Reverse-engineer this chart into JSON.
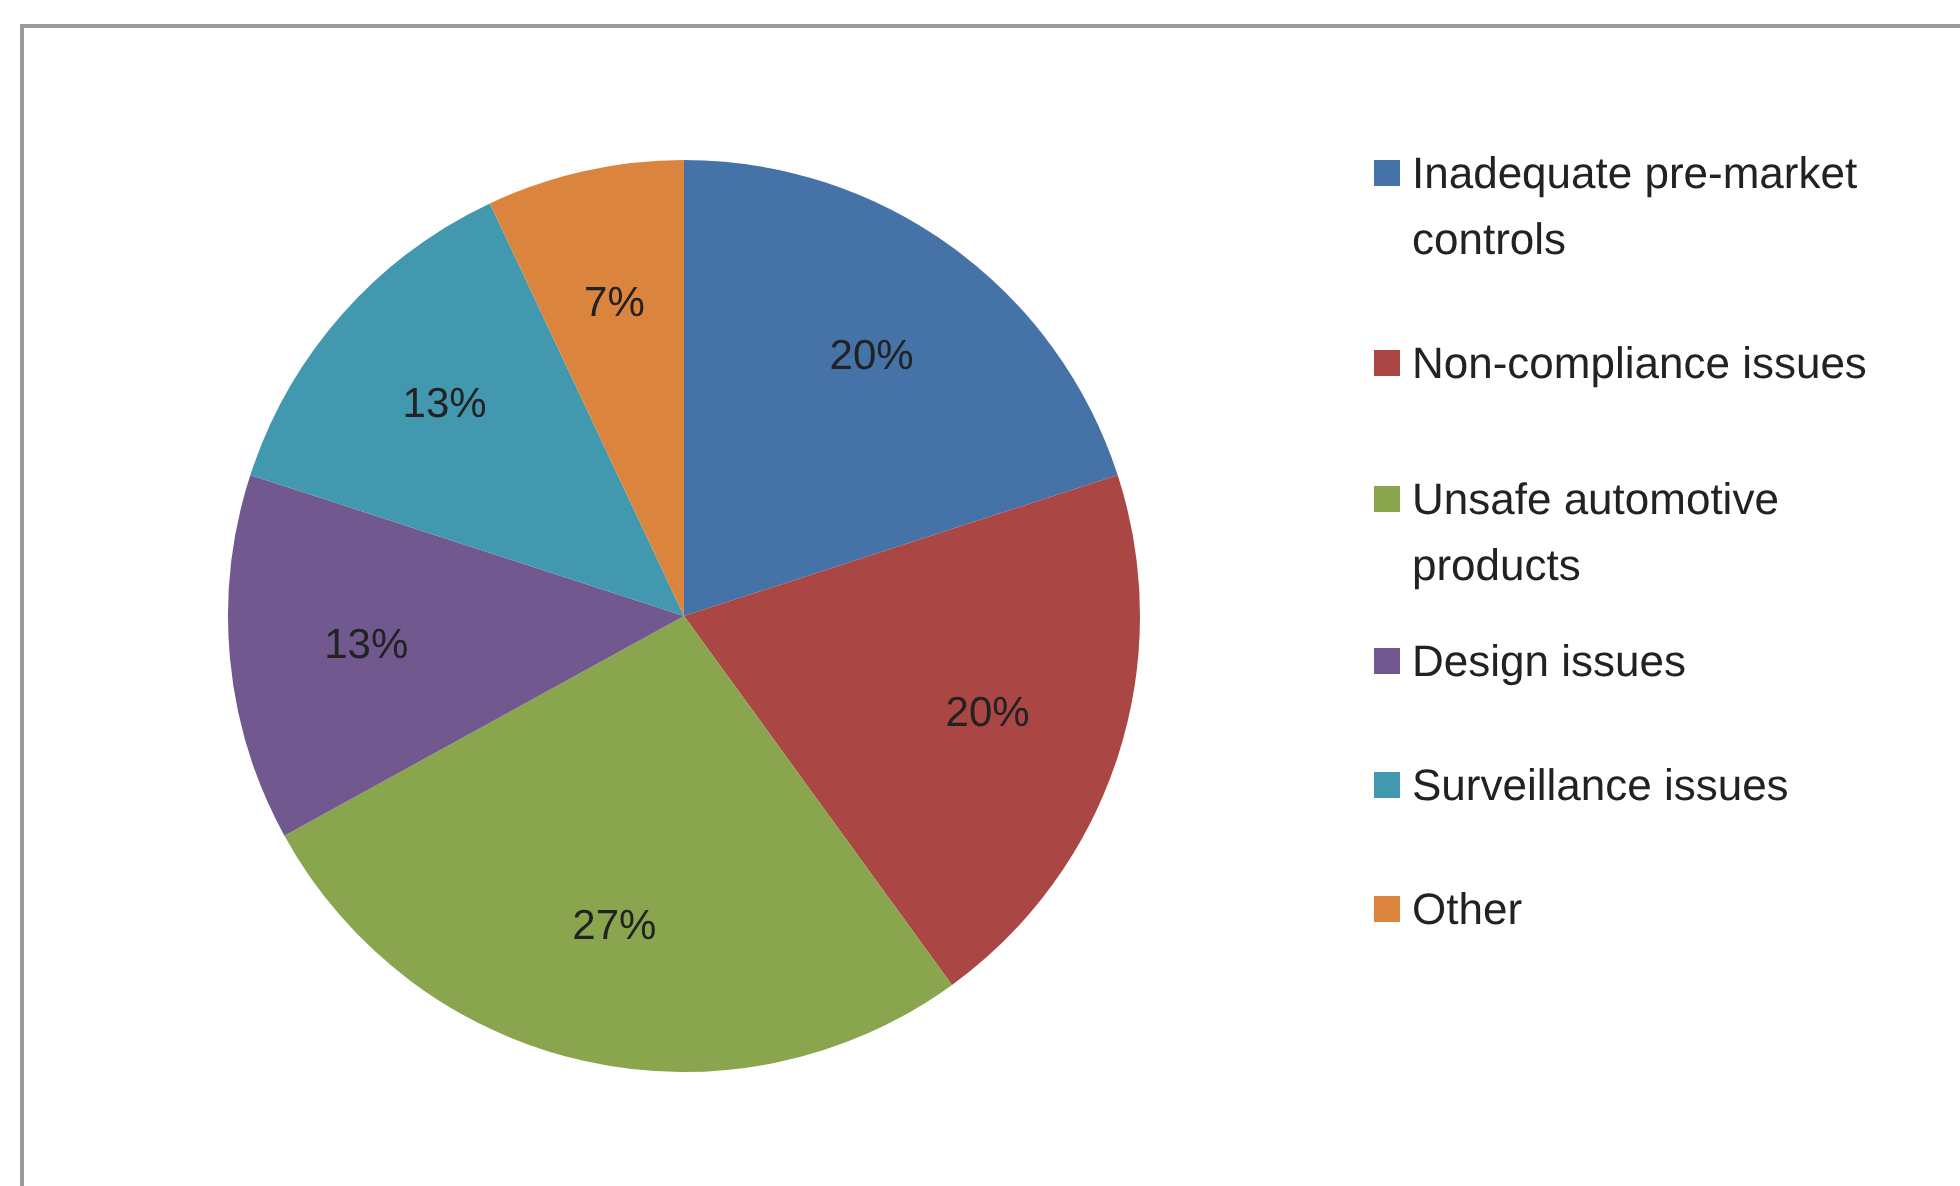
{
  "chart_data": {
    "type": "pie",
    "categories": [
      "Inadequate pre-market controls",
      "Non-compliance issues",
      "Unsafe automotive products",
      "Design issues",
      "Surveillance issues",
      "Other"
    ],
    "values": [
      20,
      20,
      27,
      13,
      13,
      7
    ],
    "colors": [
      "#4572a7",
      "#aa4643",
      "#89a54e",
      "#71588f",
      "#4198af",
      "#db843d"
    ],
    "value_labels": [
      "20%",
      "20%",
      "27%",
      "13%",
      "13%",
      "7%"
    ],
    "legend": "right"
  }
}
